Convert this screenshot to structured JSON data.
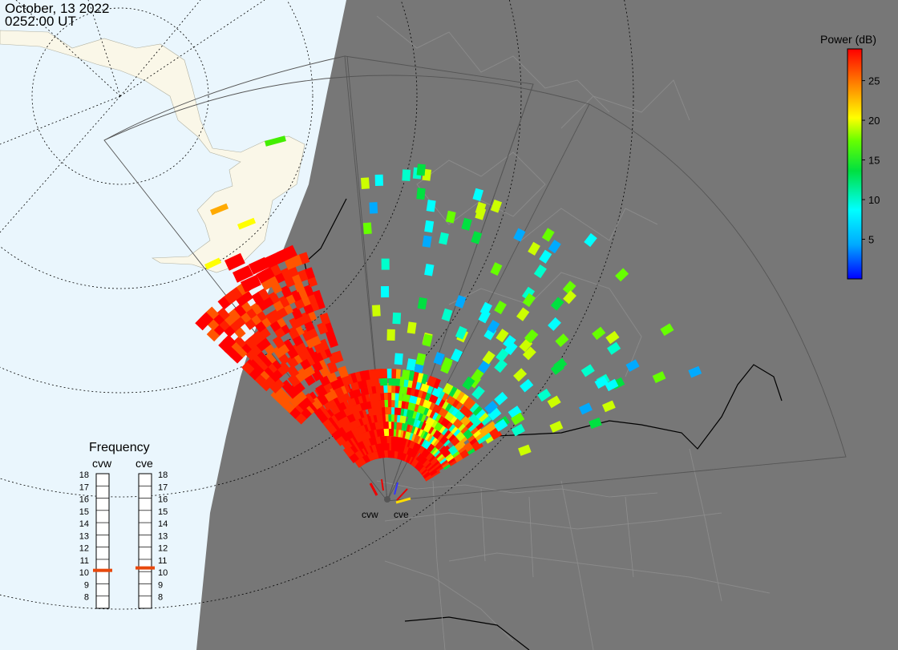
{
  "timestamp": {
    "date": "October, 13 2022",
    "time": "0252:00 UT"
  },
  "legend": {
    "title": "Power (dB)",
    "ticks": [
      "5",
      "10",
      "15",
      "20",
      "25"
    ],
    "tick_values": [
      5,
      10,
      15,
      20,
      25
    ],
    "range": [
      0,
      29
    ],
    "colors": [
      "#0000ff",
      "#00aaff",
      "#00ffff",
      "#00ff66",
      "#44ee00",
      "#ccff00",
      "#ffff00",
      "#ffaa00",
      "#ff5500",
      "#ff0000"
    ]
  },
  "radars": [
    {
      "id": "cvw",
      "label": "cvw",
      "frequency_mhz": 10.6
    },
    {
      "id": "cve",
      "label": "cve",
      "frequency_mhz": 10.8
    }
  ],
  "frequency_panel": {
    "title": "Frequency",
    "scale": [
      "18",
      "17",
      "16",
      "15",
      "14",
      "13",
      "12",
      "11",
      "10",
      "9",
      "8"
    ],
    "min": 8,
    "max": 18
  },
  "colors": {
    "night": "#777777",
    "ocean_day": "#eaf6fd",
    "land_day": "#faf7e8",
    "boundary_line": "#aaaaaa",
    "coast_line": "#000000",
    "indicator": "#e8480c"
  }
}
